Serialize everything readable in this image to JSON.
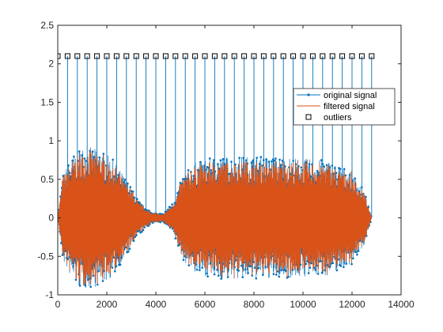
{
  "chart_data": {
    "type": "line",
    "title": "",
    "xlabel": "",
    "ylabel": "",
    "xlim": [
      0,
      14000
    ],
    "ylim": [
      -1,
      2.5
    ],
    "x_ticks": [
      0,
      2000,
      4000,
      6000,
      8000,
      10000,
      12000,
      14000
    ],
    "x_tick_labels": [
      "0",
      "2000",
      "4000",
      "6000",
      "8000",
      "10000",
      "12000",
      "14000"
    ],
    "y_ticks": [
      -1,
      -0.5,
      0,
      0.5,
      1,
      1.5,
      2,
      2.5
    ],
    "y_tick_labels": [
      "-1",
      "-0.5",
      "0",
      "0.5",
      "1",
      "1.5",
      "2",
      "2.5"
    ],
    "grid": false,
    "legend_position": "top-right",
    "series": [
      {
        "name": "original signal",
        "color": "#0072BD",
        "marker": "dot",
        "envelope": [
          {
            "x": 0,
            "amp": 0.0
          },
          {
            "x": 200,
            "amp": 0.55
          },
          {
            "x": 500,
            "amp": 0.75
          },
          {
            "x": 900,
            "amp": 0.92
          },
          {
            "x": 1300,
            "amp": 0.92
          },
          {
            "x": 1700,
            "amp": 0.88
          },
          {
            "x": 2200,
            "amp": 0.78
          },
          {
            "x": 2800,
            "amp": 0.5
          },
          {
            "x": 3300,
            "amp": 0.22
          },
          {
            "x": 3800,
            "amp": 0.08
          },
          {
            "x": 4300,
            "amp": 0.05
          },
          {
            "x": 4700,
            "amp": 0.2
          },
          {
            "x": 5100,
            "amp": 0.55
          },
          {
            "x": 5600,
            "amp": 0.72
          },
          {
            "x": 6500,
            "amp": 0.8
          },
          {
            "x": 8000,
            "amp": 0.8
          },
          {
            "x": 9500,
            "amp": 0.78
          },
          {
            "x": 11000,
            "amp": 0.75
          },
          {
            "x": 12000,
            "amp": 0.6
          },
          {
            "x": 12500,
            "amp": 0.35
          },
          {
            "x": 12800,
            "amp": 0.0
          }
        ]
      },
      {
        "name": "filtered signal",
        "color": "#D95319"
      },
      {
        "name": "outliers",
        "color": "#000000",
        "marker": "square",
        "y": 2.1,
        "x": [
          0,
          400,
          800,
          1200,
          1600,
          2000,
          2400,
          2800,
          3200,
          3600,
          4000,
          4400,
          4800,
          5200,
          5600,
          6000,
          6400,
          6800,
          7200,
          7600,
          8000,
          8400,
          8800,
          9200,
          9600,
          10000,
          10400,
          10800,
          11200,
          11600,
          12000,
          12400,
          12800
        ]
      }
    ]
  }
}
